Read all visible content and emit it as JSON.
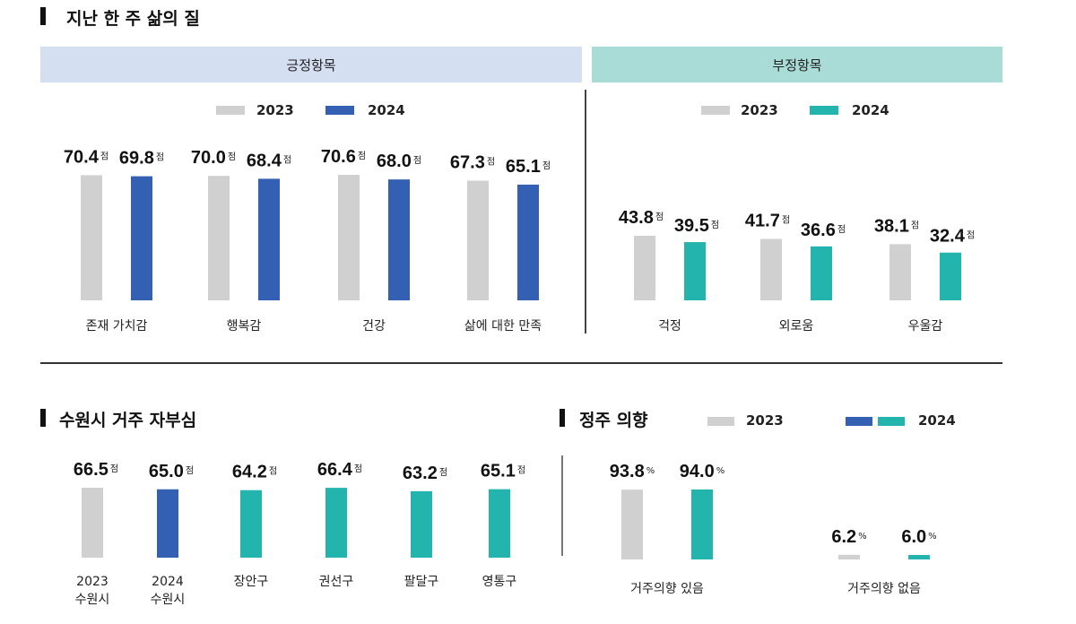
{
  "colors": {
    "y2023": "#d0d0d0",
    "y2024_pos": "#3460b4",
    "y2024_neg": "#22b4ad",
    "band_pos": "#d4dff2",
    "band_neg": "#a9dcd6"
  },
  "section1": {
    "title": "지난 한 주 삶의 질",
    "positive_header": "긍정항목",
    "negative_header": "부정항목"
  },
  "legend": {
    "y2023": "2023",
    "y2024": "2024"
  },
  "section2": {
    "title": "수원시 거주 자부심"
  },
  "section3": {
    "title": "정주 의향"
  },
  "chart_data": [
    {
      "type": "bar",
      "title": "긍정항목",
      "categories": [
        "존재 가치감",
        "행복감",
        "건강",
        "삶에 대한 만족"
      ],
      "series": [
        {
          "name": "2023",
          "values": [
            70.4,
            70.0,
            70.6,
            67.3
          ],
          "labels": [
            "70.4",
            "70.0",
            "70.6",
            "67.3"
          ]
        },
        {
          "name": "2024",
          "values": [
            69.8,
            68.4,
            68.0,
            65.1
          ],
          "labels": [
            "69.8",
            "68.4",
            "68.0",
            "65.1"
          ]
        }
      ],
      "unit": "점"
    },
    {
      "type": "bar",
      "title": "부정항목",
      "categories": [
        "걱정",
        "외로움",
        "우울감"
      ],
      "series": [
        {
          "name": "2023",
          "values": [
            43.8,
            41.7,
            38.1
          ],
          "labels": [
            "43.8",
            "41.7",
            "38.1"
          ]
        },
        {
          "name": "2024",
          "values": [
            39.5,
            36.6,
            32.4
          ],
          "labels": [
            "39.5",
            "36.6",
            "32.4"
          ]
        }
      ],
      "unit": "점"
    },
    {
      "type": "bar",
      "title": "수원시 거주 자부심",
      "categories": [
        "2023\n수원시",
        "2024\n수원시",
        "장안구",
        "권선구",
        "팔달구",
        "영통구"
      ],
      "values": [
        66.5,
        65.0,
        64.2,
        66.4,
        63.2,
        65.1
      ],
      "labels": [
        "66.5",
        "65.0",
        "64.2",
        "66.4",
        "63.2",
        "65.1"
      ],
      "unit": "점"
    },
    {
      "type": "bar",
      "title": "정주 의향",
      "categories": [
        "거주의향 있음",
        "거주의향 없음"
      ],
      "series": [
        {
          "name": "2023",
          "values": [
            93.8,
            6.2
          ],
          "labels": [
            "93.8",
            "6.2"
          ]
        },
        {
          "name": "2024",
          "values": [
            94.0,
            6.0
          ],
          "labels": [
            "94.0",
            "6.0"
          ]
        }
      ],
      "unit": "%"
    }
  ]
}
